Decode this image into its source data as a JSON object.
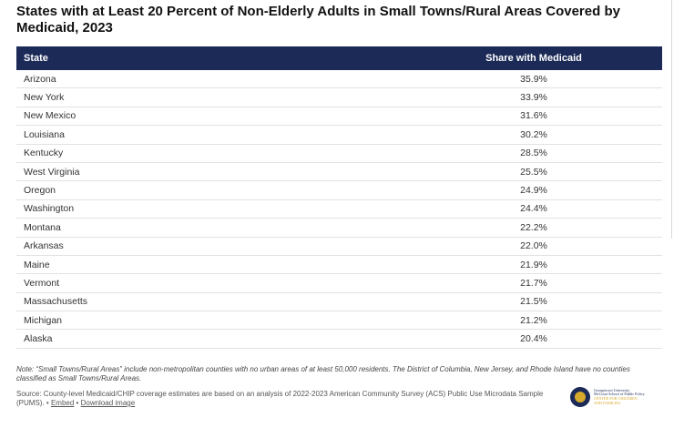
{
  "title": "States with at Least 20 Percent of Non-Elderly Adults in Small Towns/Rural Areas Covered by Medicaid, 2023",
  "table": {
    "headers": {
      "state": "State",
      "share": "Share with Medicaid"
    },
    "rows": [
      {
        "state": "Arizona",
        "share": "35.9%"
      },
      {
        "state": "New York",
        "share": "33.9%"
      },
      {
        "state": "New Mexico",
        "share": "31.6%"
      },
      {
        "state": "Louisiana",
        "share": "30.2%"
      },
      {
        "state": "Kentucky",
        "share": "28.5%"
      },
      {
        "state": "West Virginia",
        "share": "25.5%"
      },
      {
        "state": "Oregon",
        "share": "24.9%"
      },
      {
        "state": "Washington",
        "share": "24.4%"
      },
      {
        "state": "Montana",
        "share": "22.2%"
      },
      {
        "state": "Arkansas",
        "share": "22.0%"
      },
      {
        "state": "Maine",
        "share": "21.9%"
      },
      {
        "state": "Vermont",
        "share": "21.7%"
      },
      {
        "state": "Massachusetts",
        "share": "21.5%"
      },
      {
        "state": "Michigan",
        "share": "21.2%"
      },
      {
        "state": "Alaska",
        "share": "20.4%"
      }
    ]
  },
  "note": "Note: “Small Towns/Rural Areas” include non-metropolitan counties with no urban areas of at least 50,000 residents. The District of Columbia, New Jersey, and Rhode Island have no counties classified as Small Towns/Rural Areas.",
  "source": {
    "text": "Source: County-level Medicaid/CHIP coverage estimates are based on an analysis of 2022-2023 American Community Survey (ACS) Public Use Microdata Sample (PUMS).",
    "bullet": "•",
    "embed_label": "Embed",
    "download_label": "Download image"
  },
  "logo": {
    "line1": "Georgetown University",
    "line2": "McCourt School of Public Policy",
    "line3": "CENTER FOR CHILDREN",
    "line4": "AND FAMILIES"
  },
  "colors": {
    "header_bg": "#1b2a57",
    "accent": "#d6a92b"
  }
}
